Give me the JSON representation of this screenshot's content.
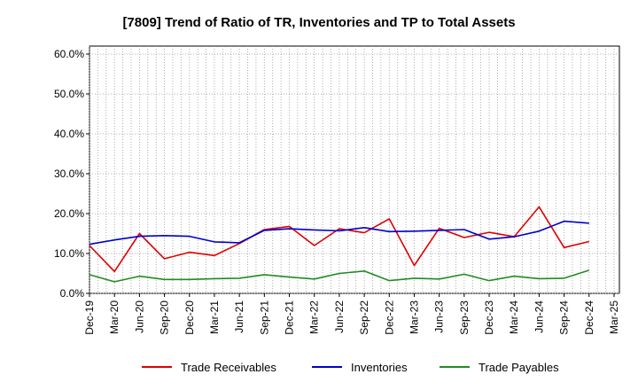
{
  "chart_data": {
    "type": "line",
    "title": "[7809]  Trend of Ratio of TR, Inventories and TP to Total Assets",
    "xlabel": "",
    "ylabel": "",
    "x": [
      "Dec-19",
      "Mar-20",
      "Jun-20",
      "Sep-20",
      "Dec-20",
      "Mar-21",
      "Jun-21",
      "Sep-21",
      "Dec-21",
      "Mar-22",
      "Jun-22",
      "Sep-22",
      "Dec-22",
      "Mar-23",
      "Jun-23",
      "Sep-23",
      "Dec-23",
      "Mar-24",
      "Jun-24",
      "Sep-24",
      "Dec-24"
    ],
    "x_ticks": [
      "Dec-19",
      "Mar-20",
      "Jun-20",
      "Sep-20",
      "Dec-20",
      "Mar-21",
      "Jun-21",
      "Sep-21",
      "Dec-21",
      "Mar-22",
      "Jun-22",
      "Sep-22",
      "Dec-22",
      "Mar-23",
      "Jun-23",
      "Sep-23",
      "Dec-23",
      "Mar-24",
      "Jun-24",
      "Sep-24",
      "Dec-24",
      "Mar-25"
    ],
    "ylim": [
      0,
      60
    ],
    "y_ticks": [
      0,
      10,
      20,
      30,
      40,
      50,
      60
    ],
    "y_tick_labels": [
      "0.0%",
      "10.0%",
      "20.0%",
      "30.0%",
      "40.0%",
      "50.0%",
      "60.0%"
    ],
    "grid": true,
    "legend_position": "bottom",
    "series": [
      {
        "name": "Trade Receivables",
        "color": "#e00000",
        "values": [
          12.0,
          5.5,
          15.0,
          8.7,
          10.3,
          9.5,
          12.5,
          16.0,
          16.8,
          12.0,
          16.2,
          15.2,
          18.7,
          7.0,
          16.3,
          14.0,
          15.3,
          14.2,
          21.7,
          11.5,
          13.0
        ]
      },
      {
        "name": "Inventories",
        "color": "#0000cc",
        "values": [
          12.3,
          13.4,
          14.3,
          14.5,
          14.3,
          12.9,
          12.7,
          15.8,
          16.2,
          15.9,
          15.7,
          16.5,
          15.5,
          15.6,
          15.8,
          16.0,
          13.6,
          14.2,
          15.6,
          18.1,
          17.6
        ]
      },
      {
        "name": "Trade Payables",
        "color": "#228b22",
        "values": [
          4.7,
          2.9,
          4.3,
          3.5,
          3.5,
          3.7,
          3.8,
          4.7,
          4.1,
          3.6,
          5.0,
          5.6,
          3.2,
          3.8,
          3.6,
          4.8,
          3.2,
          4.3,
          3.7,
          3.8,
          5.8
        ]
      }
    ]
  }
}
